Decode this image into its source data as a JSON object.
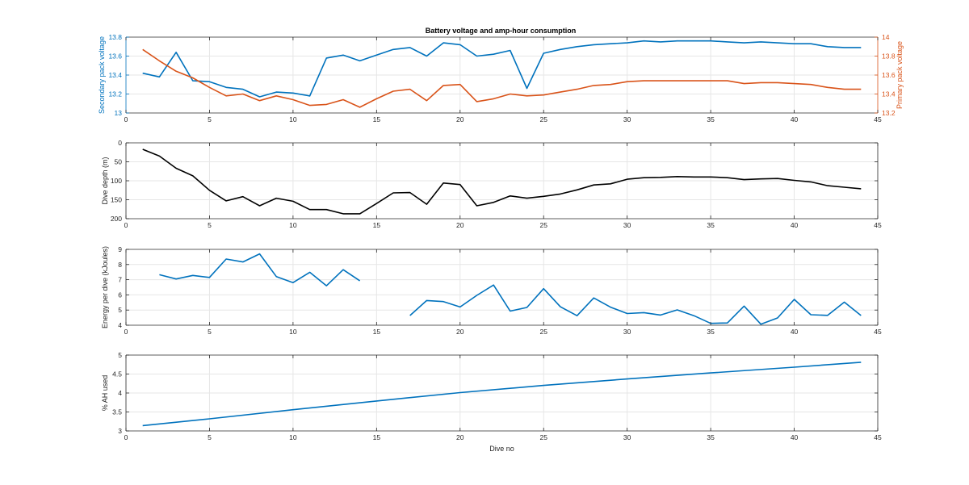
{
  "figure_title": "Battery voltage and amp-hour consumption",
  "colors": {
    "blue": "#0072BD",
    "orange": "#D95319",
    "black": "#000000",
    "grid": "#e6e6e6",
    "axis": "#262626"
  },
  "chart_data": [
    {
      "type": "line",
      "title": "Battery voltage and amp-hour consumption",
      "xlabel": "",
      "ylabel": "Secondary pack voltage",
      "ylabel_right": "Primary pack voltage",
      "xlim": [
        0,
        45
      ],
      "ylim": [
        13,
        13.8
      ],
      "ylim_right": [
        13.2,
        14
      ],
      "xticks": [
        0,
        5,
        10,
        15,
        20,
        25,
        30,
        35,
        40,
        45
      ],
      "yticks": [
        13,
        13.2,
        13.4,
        13.6,
        13.8
      ],
      "yticks_right": [
        13.2,
        13.4,
        13.6,
        13.8,
        14
      ],
      "ytick_labels": [
        "13",
        "13.2",
        "13.4",
        "13.6",
        "13.8"
      ],
      "ytick_labels_right": [
        "13.2",
        "13.4",
        "13.6",
        "13.8",
        "14"
      ],
      "grid": true,
      "series": [
        {
          "axis": "left",
          "color": "#0072BD",
          "x": [
            1,
            2,
            3,
            4,
            5,
            6,
            7,
            8,
            9,
            10,
            11,
            12,
            13,
            14,
            15,
            16,
            17,
            18,
            19,
            20,
            21,
            22,
            23,
            24,
            25,
            26,
            27,
            28,
            29,
            30,
            31,
            32,
            33,
            34,
            35,
            36,
            37,
            38,
            39,
            40,
            41,
            42,
            43,
            44
          ],
          "y": [
            13.42,
            13.38,
            13.64,
            13.34,
            13.33,
            13.27,
            13.25,
            13.17,
            13.22,
            13.21,
            13.18,
            13.58,
            13.61,
            13.55,
            13.61,
            13.67,
            13.69,
            13.6,
            13.74,
            13.72,
            13.6,
            13.62,
            13.66,
            13.26,
            13.63,
            13.67,
            13.7,
            13.72,
            13.73,
            13.74,
            13.76,
            13.75,
            13.76,
            13.76,
            13.76,
            13.75,
            13.74,
            13.75,
            13.74,
            13.73,
            13.73,
            13.7,
            13.69,
            13.69
          ]
        },
        {
          "axis": "right",
          "color": "#D95319",
          "x": [
            1,
            2,
            3,
            4,
            5,
            6,
            7,
            8,
            9,
            10,
            11,
            12,
            13,
            14,
            15,
            16,
            17,
            18,
            19,
            20,
            21,
            22,
            23,
            24,
            25,
            26,
            27,
            28,
            29,
            30,
            31,
            32,
            33,
            34,
            35,
            36,
            37,
            38,
            39,
            40,
            41,
            42,
            43,
            44
          ],
          "y": [
            13.87,
            13.75,
            13.64,
            13.57,
            13.47,
            13.38,
            13.4,
            13.33,
            13.38,
            13.34,
            13.28,
            13.29,
            13.34,
            13.26,
            13.35,
            13.43,
            13.45,
            13.33,
            13.49,
            13.5,
            13.32,
            13.35,
            13.4,
            13.38,
            13.39,
            13.42,
            13.45,
            13.49,
            13.5,
            13.53,
            13.54,
            13.54,
            13.54,
            13.54,
            13.54,
            13.54,
            13.51,
            13.52,
            13.52,
            13.51,
            13.5,
            13.47,
            13.45,
            13.45
          ]
        }
      ]
    },
    {
      "type": "line",
      "xlabel": "",
      "ylabel": "Dive depth (m)",
      "xlim": [
        0,
        45
      ],
      "ylim": [
        0,
        200
      ],
      "y_reversed": true,
      "xticks": [
        0,
        5,
        10,
        15,
        20,
        25,
        30,
        35,
        40,
        45
      ],
      "yticks": [
        0,
        50,
        100,
        150,
        200
      ],
      "ytick_labels": [
        "0",
        "50",
        "100",
        "150",
        "200"
      ],
      "grid": true,
      "series": [
        {
          "color": "#000000",
          "x": [
            1,
            2,
            3,
            4,
            5,
            6,
            7,
            8,
            9,
            10,
            11,
            12,
            13,
            14,
            15,
            16,
            17,
            18,
            19,
            20,
            21,
            22,
            23,
            24,
            25,
            26,
            27,
            28,
            29,
            30,
            31,
            32,
            33,
            34,
            35,
            36,
            37,
            38,
            39,
            40,
            41,
            42,
            43,
            44
          ],
          "y": [
            17,
            35,
            67,
            87,
            125,
            153,
            142,
            166,
            146,
            154,
            176,
            176,
            187,
            187,
            160,
            132,
            131,
            162,
            106,
            110,
            166,
            157,
            140,
            146,
            141,
            135,
            124,
            111,
            108,
            96,
            92,
            91,
            89,
            90,
            90,
            92,
            97,
            95,
            94,
            99,
            103,
            113,
            117,
            121
          ]
        }
      ]
    },
    {
      "type": "line",
      "xlabel": "",
      "ylabel": "Energy per dive (kJoules)",
      "xlim": [
        0,
        45
      ],
      "ylim": [
        4,
        9
      ],
      "xticks": [
        0,
        5,
        10,
        15,
        20,
        25,
        30,
        35,
        40,
        45
      ],
      "yticks": [
        4,
        5,
        6,
        7,
        8,
        9
      ],
      "ytick_labels": [
        "4",
        "5",
        "6",
        "7",
        "8",
        "9"
      ],
      "grid": true,
      "series": [
        {
          "color": "#0072BD",
          "x": [
            2,
            3,
            4,
            5,
            6,
            7,
            8,
            9,
            10,
            11,
            12,
            13,
            14
          ],
          "y": [
            7.33,
            7.05,
            7.28,
            7.15,
            8.36,
            8.17,
            8.7,
            7.21,
            6.81,
            7.49,
            6.6,
            7.66,
            6.93
          ]
        },
        {
          "color": "#0072BD",
          "x": [
            17,
            18,
            19,
            20,
            21,
            22,
            23,
            24,
            25,
            26,
            27,
            28,
            29,
            30,
            31,
            32,
            33,
            34,
            35,
            36,
            37,
            38,
            39,
            40,
            41,
            42,
            43,
            44
          ],
          "y": [
            4.64,
            5.63,
            5.56,
            5.2,
            5.97,
            6.65,
            4.93,
            5.17,
            6.41,
            5.22,
            4.63,
            5.8,
            5.19,
            4.77,
            4.83,
            4.67,
            5.01,
            4.63,
            4.12,
            4.15,
            5.26,
            4.07,
            4.48,
            5.7,
            4.69,
            4.65,
            5.52,
            4.64
          ]
        }
      ]
    },
    {
      "type": "line",
      "xlabel": "Dive no",
      "ylabel": "% AH used",
      "xlim": [
        0,
        45
      ],
      "ylim": [
        3,
        5
      ],
      "xticks": [
        0,
        5,
        10,
        15,
        20,
        25,
        30,
        35,
        40,
        45
      ],
      "yticks": [
        3,
        3.5,
        4,
        4.5,
        5
      ],
      "ytick_labels": [
        "3",
        "3.5",
        "4",
        "4.5",
        "5"
      ],
      "grid": true,
      "series": [
        {
          "color": "#0072BD",
          "x": [
            1,
            5,
            10,
            15,
            20,
            25,
            30,
            35,
            40,
            44
          ],
          "y": [
            3.14,
            3.32,
            3.56,
            3.79,
            4.01,
            4.2,
            4.37,
            4.53,
            4.68,
            4.81
          ]
        }
      ]
    }
  ]
}
